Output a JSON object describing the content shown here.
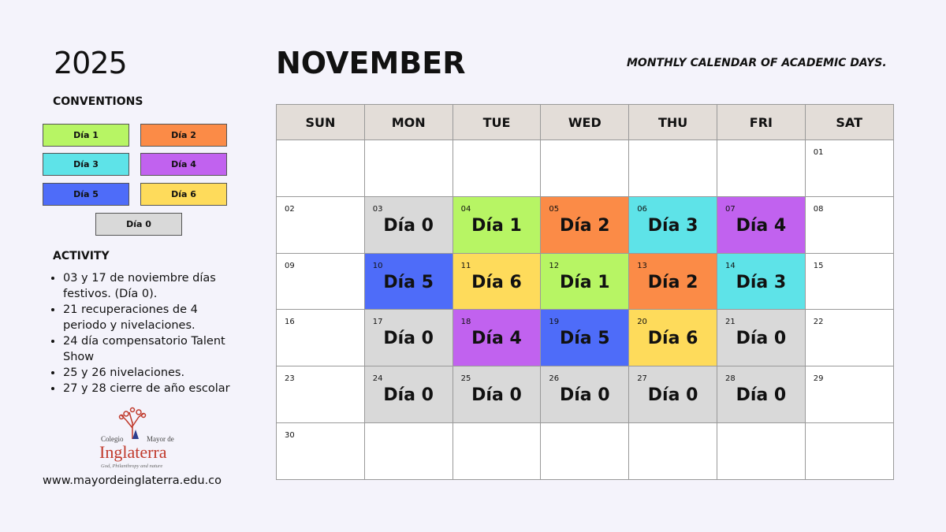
{
  "year": "2025",
  "month": "NOVEMBER",
  "subtitle": "MONTHLY CALENDAR OF ACADEMIC DAYS.",
  "conventions": {
    "title": "CONVENTIONS",
    "items": [
      {
        "label": "Día 1",
        "color": "#b7f564"
      },
      {
        "label": "Día 2",
        "color": "#fb8b47"
      },
      {
        "label": "Día 3",
        "color": "#5ee3e8"
      },
      {
        "label": "Día 4",
        "color": "#c162ef"
      },
      {
        "label": "Día 5",
        "color": "#4e6cf9"
      },
      {
        "label": "Día 6",
        "color": "#fedb5b"
      },
      {
        "label": "Día 0",
        "color": "#d9d9d9"
      }
    ]
  },
  "activity": {
    "title": "ACTIVITY",
    "items": [
      "03 y 17 de noviembre días festivos. (Día 0).",
      "21 recuperaciones de 4 periodo y nivelaciones.",
      "24 día compensatorio Talent Show",
      "25 y 26 nivelaciones.",
      "27 y 28 cierre de año escolar"
    ]
  },
  "logo": {
    "line1": "Colegio",
    "line2": "Mayor de",
    "name": "Inglaterra",
    "motto": "God, Philanthropy and nature"
  },
  "website": "www.mayordeinglaterra.edu.co",
  "calendar": {
    "headers": [
      "SUN",
      "MON",
      "TUE",
      "WED",
      "THU",
      "FRI",
      "SAT"
    ],
    "weeks": [
      [
        null,
        null,
        null,
        null,
        null,
        null,
        {
          "date": "01"
        }
      ],
      [
        {
          "date": "02"
        },
        {
          "date": "03",
          "label": "Día 0",
          "color": "#d9d9d9"
        },
        {
          "date": "04",
          "label": "Día 1",
          "color": "#b7f564"
        },
        {
          "date": "05",
          "label": "Día 2",
          "color": "#fb8b47"
        },
        {
          "date": "06",
          "label": "Día 3",
          "color": "#5ee3e8"
        },
        {
          "date": "07",
          "label": "Día 4",
          "color": "#c162ef"
        },
        {
          "date": "08"
        }
      ],
      [
        {
          "date": "09"
        },
        {
          "date": "10",
          "label": "Día 5",
          "color": "#4e6cf9"
        },
        {
          "date": "11",
          "label": "Día 6",
          "color": "#fedb5b"
        },
        {
          "date": "12",
          "label": "Día 1",
          "color": "#b7f564"
        },
        {
          "date": "13",
          "label": "Día 2",
          "color": "#fb8b47"
        },
        {
          "date": "14",
          "label": "Día 3",
          "color": "#5ee3e8"
        },
        {
          "date": "15"
        }
      ],
      [
        {
          "date": "16"
        },
        {
          "date": "17",
          "label": "Día 0",
          "color": "#d9d9d9"
        },
        {
          "date": "18",
          "label": "Día 4",
          "color": "#c162ef"
        },
        {
          "date": "19",
          "label": "Día 5",
          "color": "#4e6cf9"
        },
        {
          "date": "20",
          "label": "Día 6",
          "color": "#fedb5b"
        },
        {
          "date": "21",
          "label": "Día 0",
          "color": "#d9d9d9"
        },
        {
          "date": "22"
        }
      ],
      [
        {
          "date": "23"
        },
        {
          "date": "24",
          "label": "Día 0",
          "color": "#d9d9d9"
        },
        {
          "date": "25",
          "label": "Día 0",
          "color": "#d9d9d9"
        },
        {
          "date": "26",
          "label": "Día 0",
          "color": "#d9d9d9"
        },
        {
          "date": "27",
          "label": "Día 0",
          "color": "#d9d9d9"
        },
        {
          "date": "28",
          "label": "Día 0",
          "color": "#d9d9d9"
        },
        {
          "date": "29"
        }
      ],
      [
        {
          "date": "30"
        },
        null,
        null,
        null,
        null,
        null,
        null
      ]
    ]
  }
}
